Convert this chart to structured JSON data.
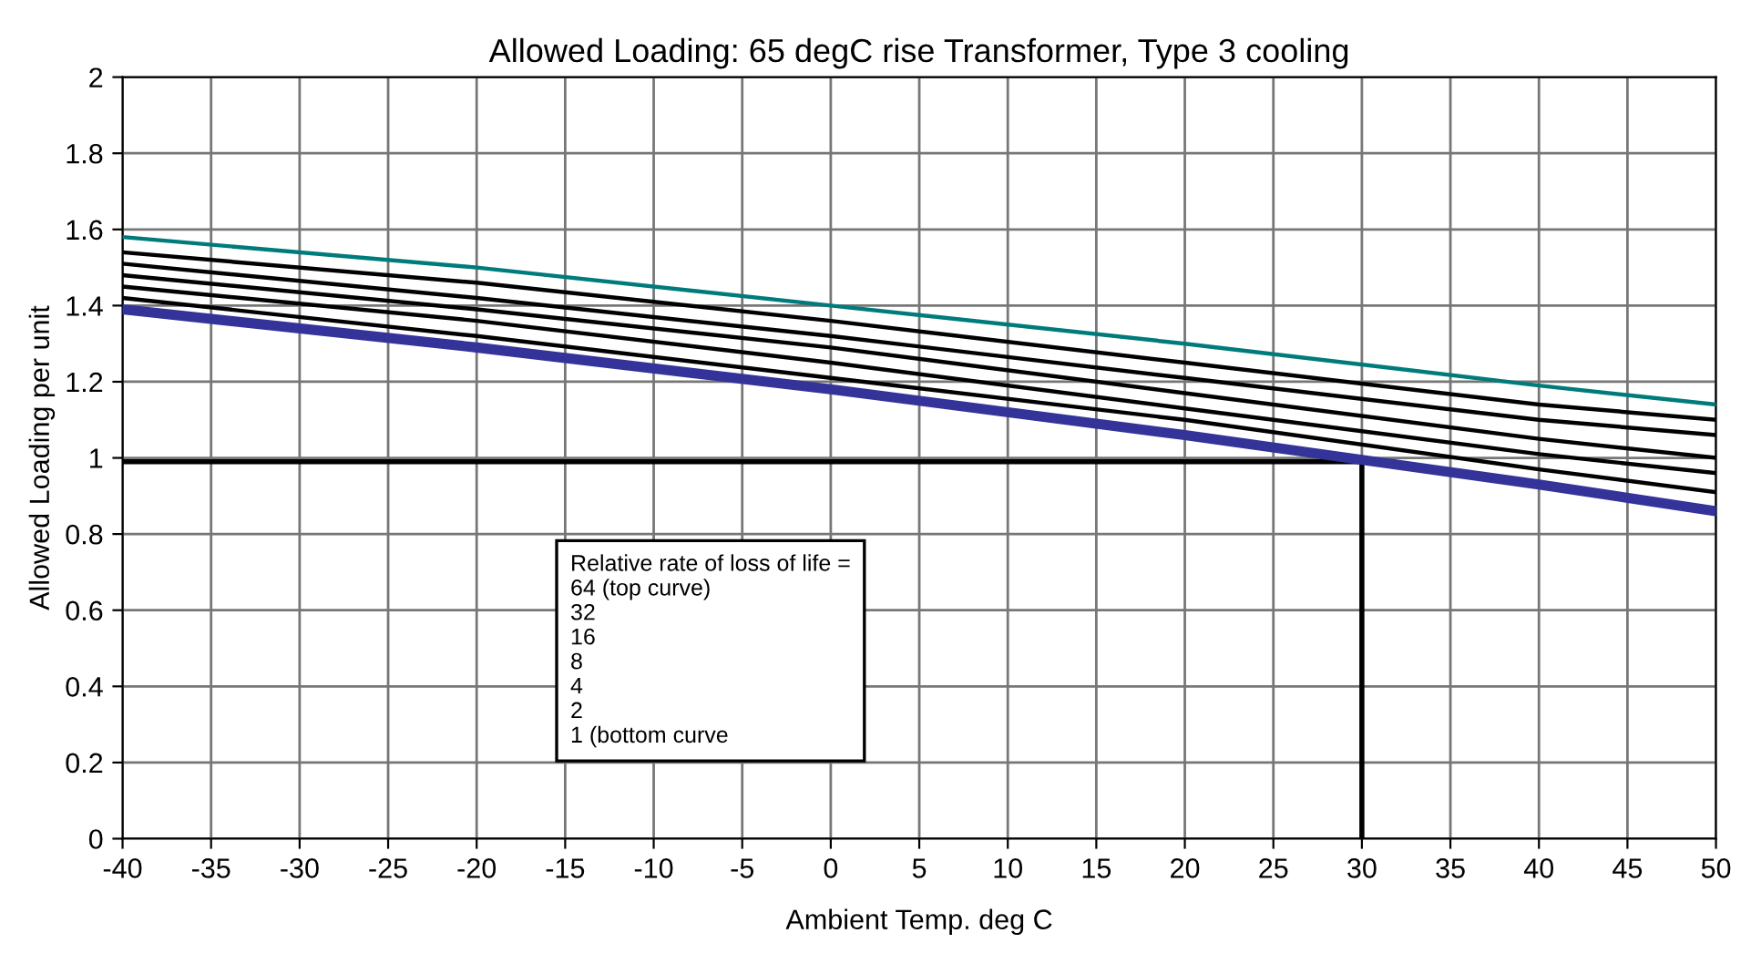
{
  "chart_data": {
    "type": "line",
    "title": "Allowed Loading: 65 degC rise Transformer, Type 3 cooling",
    "xlabel": "Ambient Temp. deg C",
    "ylabel": "Allowed Loading per unit",
    "x": [
      -40,
      -20,
      0,
      20,
      40,
      50
    ],
    "series": [
      {
        "color": "#007b7b",
        "values": [
          1.58,
          1.5,
          1.4,
          1.3,
          1.19,
          1.14
        ]
      },
      {
        "color": "#000000",
        "values": [
          1.54,
          1.46,
          1.36,
          1.25,
          1.14,
          1.1
        ]
      },
      {
        "color": "#000000",
        "values": [
          1.51,
          1.42,
          1.32,
          1.21,
          1.1,
          1.06
        ]
      },
      {
        "color": "#000000",
        "values": [
          1.48,
          1.39,
          1.29,
          1.17,
          1.05,
          1.0
        ]
      },
      {
        "color": "#000000",
        "values": [
          1.45,
          1.36,
          1.25,
          1.13,
          1.01,
          0.96
        ]
      },
      {
        "color": "#000000",
        "values": [
          1.42,
          1.32,
          1.21,
          1.1,
          0.97,
          0.91
        ]
      },
      {
        "color": "#333399",
        "values": [
          1.39,
          1.29,
          1.18,
          1.06,
          0.93,
          0.86
        ]
      }
    ],
    "xlim": [
      -40,
      50
    ],
    "xticks": [
      -40,
      -35,
      -30,
      -25,
      -20,
      -15,
      -10,
      -5,
      0,
      5,
      10,
      15,
      20,
      25,
      30,
      35,
      40,
      45,
      50
    ],
    "ylim": [
      0,
      2
    ],
    "yticks": [
      0,
      0.2,
      0.4,
      0.6,
      0.8,
      1,
      1.2,
      1.4,
      1.6,
      1.8,
      2
    ],
    "grid": true,
    "legend": false,
    "ref_lines": [
      {
        "axis": "y",
        "value": 0.99,
        "color": "#000000"
      },
      {
        "axis": "x",
        "value": 30,
        "color": "#000000"
      }
    ],
    "annotations": [
      "Relative rate of loss of life =\n64 (top curve)\n32\n16\n8\n4\n2\n1 (bottom curve"
    ]
  }
}
